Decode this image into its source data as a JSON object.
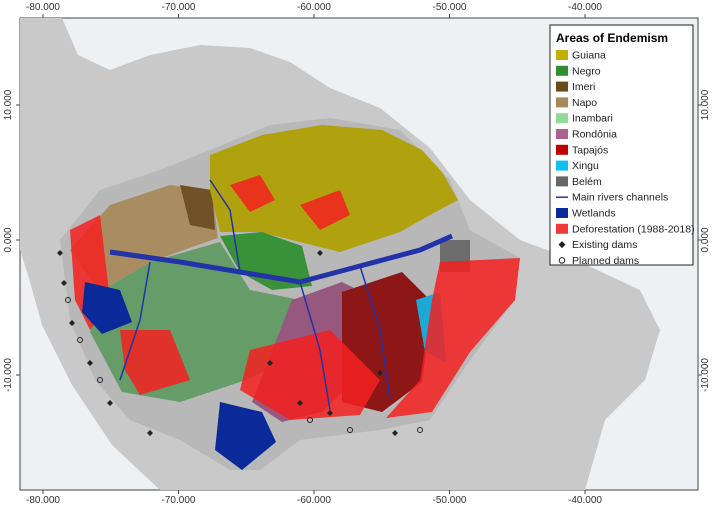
{
  "axes": {
    "top_ticks": [
      "-80.000",
      "-70.000",
      "-60.000",
      "-50.000",
      "-40.000"
    ],
    "bottom_ticks": [
      "-80.000",
      "-70.000",
      "-60.000",
      "-50.000",
      "-40.000"
    ],
    "left_ticks": [
      "10.000",
      "0.000",
      "-10.000"
    ],
    "right_ticks": [
      "10.000",
      "0.000",
      "-10.000"
    ]
  },
  "legend": {
    "title": "Areas of Endemism",
    "items": [
      {
        "label": "Guiana",
        "color": "#c2b000",
        "symbol": "box"
      },
      {
        "label": "Negro",
        "color": "#2f8f2f",
        "symbol": "box"
      },
      {
        "label": "Imeri",
        "color": "#6b4a1a",
        "symbol": "box"
      },
      {
        "label": "Napo",
        "color": "#a88a5a",
        "symbol": "box"
      },
      {
        "label": "Inambari",
        "color": "#8fdc9a",
        "symbol": "box"
      },
      {
        "label": "Rondônia",
        "color": "#b0608e",
        "symbol": "box"
      },
      {
        "label": "Tapajós",
        "color": "#c00000",
        "symbol": "box"
      },
      {
        "label": "Xingu",
        "color": "#10c0f0",
        "symbol": "box"
      },
      {
        "label": "Belém",
        "color": "#666666",
        "symbol": "box"
      },
      {
        "label": "Main rivers channels",
        "color": "#2233aa",
        "symbol": "line"
      },
      {
        "label": "Wetlands",
        "color": "#0a2a9a",
        "symbol": "box"
      },
      {
        "label": "Deforestation (1988-2018)",
        "color": "#f03a3a",
        "symbol": "box"
      },
      {
        "label": "Existing dams",
        "color": "#222222",
        "symbol": "diamond"
      },
      {
        "label": "Planned dams",
        "color": "#222222",
        "symbol": "circle"
      }
    ]
  }
}
